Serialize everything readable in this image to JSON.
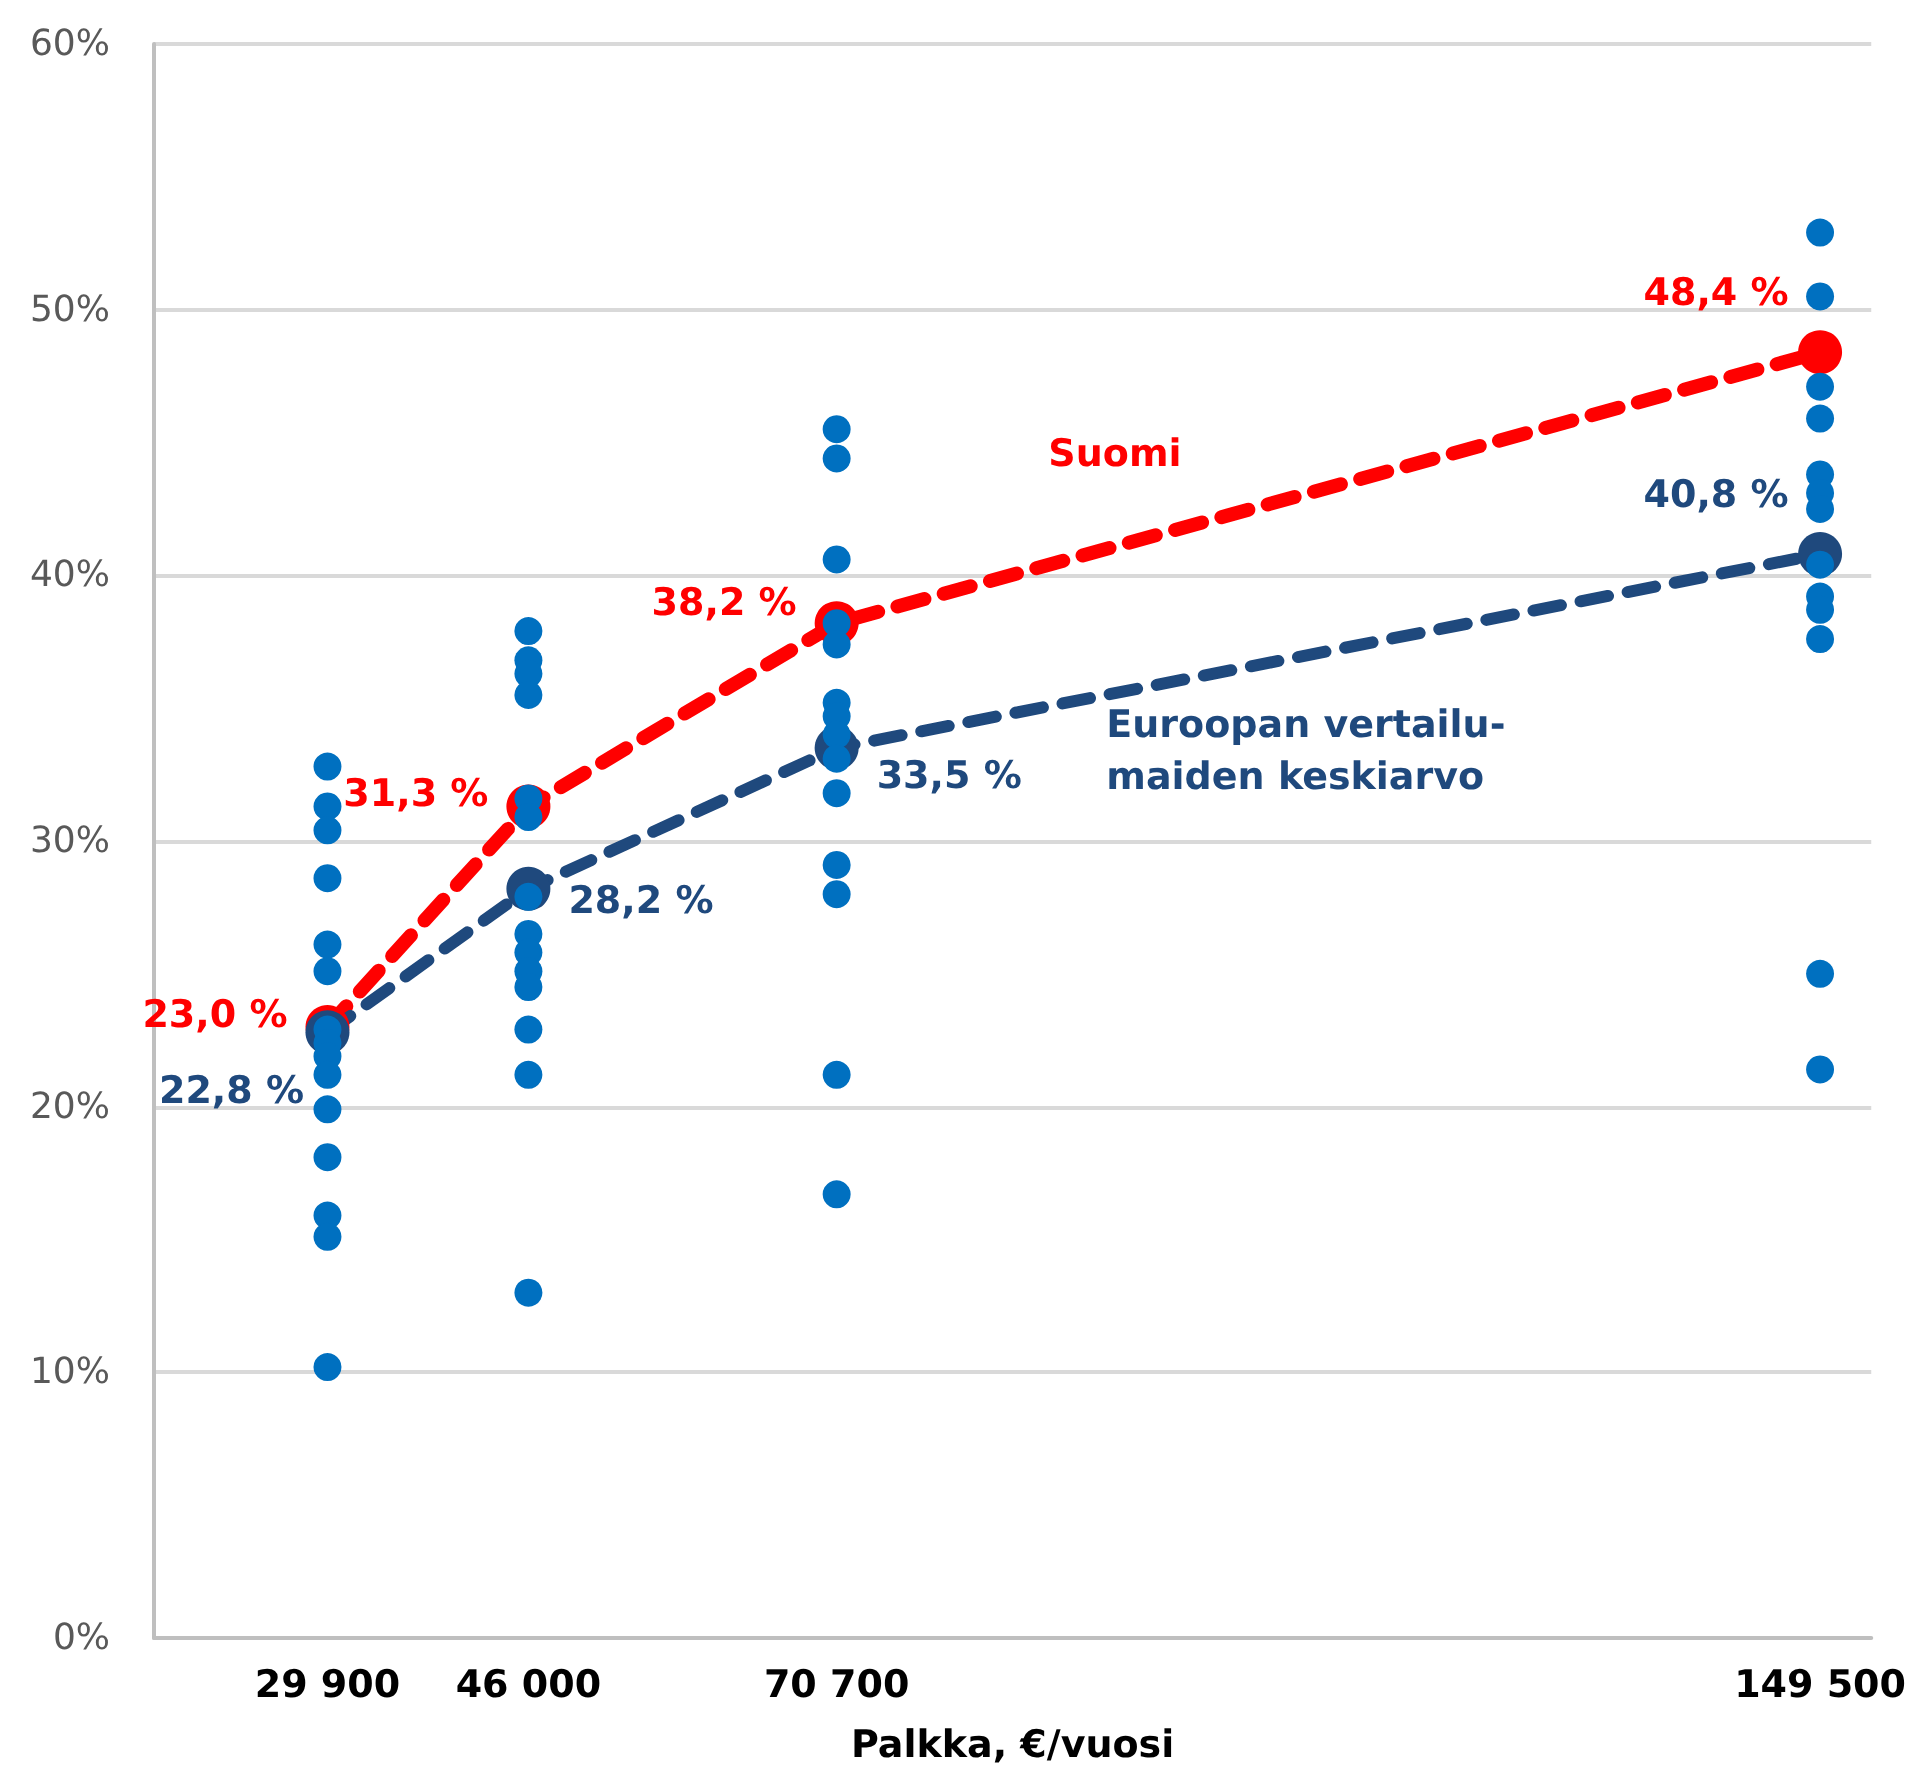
{
  "chart_data": {
    "type": "line",
    "xlabel": "Palkka, €/vuosi",
    "x": [
      29900,
      46000,
      70700,
      149500
    ],
    "xlim": [
      16000,
      153600
    ],
    "xticks": [
      {
        "value": 29900,
        "label": "29 900"
      },
      {
        "value": 46000,
        "label": "46 000"
      },
      {
        "value": 70700,
        "label": "70 700"
      },
      {
        "value": 149500,
        "label": "149 500"
      }
    ],
    "ylim": [
      0,
      60
    ],
    "yticks": [
      {
        "value": 0,
        "label": "0%"
      },
      {
        "value": 10,
        "label": "10%"
      },
      {
        "value": 20,
        "label": "20%"
      },
      {
        "value": 30,
        "label": "30%"
      },
      {
        "value": 40,
        "label": "40%"
      },
      {
        "value": 50,
        "label": "50%"
      },
      {
        "value": 60,
        "label": "60%"
      }
    ],
    "grid": "y",
    "legend": false,
    "line_style": "dashed",
    "marker": "circle",
    "series": [
      {
        "type": "scatter",
        "color": "#0070c0",
        "x": [
          29900,
          29900,
          29900,
          29900,
          29900,
          29900,
          29900,
          29900,
          29900,
          29900,
          29900,
          29900,
          29900,
          29900,
          29900,
          46000,
          46000,
          46000,
          46000,
          46000,
          46000,
          46000,
          46000,
          46000,
          46000,
          46000,
          46000,
          46000,
          46000,
          70700,
          70700,
          70700,
          70700,
          70700,
          70700,
          70700,
          70700,
          70700,
          70700,
          70700,
          70700,
          70700,
          70700,
          149500,
          149500,
          149500,
          149500,
          149500,
          149500,
          149500,
          149500,
          149500,
          149500,
          149500,
          149500,
          149500
        ],
        "values": [
          32.8,
          31.3,
          30.4,
          28.6,
          26.1,
          25.1,
          22.9,
          22.4,
          21.9,
          21.2,
          19.9,
          18.1,
          15.9,
          15.1,
          10.2,
          37.9,
          36.8,
          36.3,
          35.5,
          31.6,
          30.9,
          27.9,
          26.5,
          25.8,
          25.1,
          24.5,
          22.9,
          21.2,
          13.0,
          45.5,
          44.4,
          40.6,
          38.2,
          37.4,
          35.2,
          34.7,
          34.0,
          33.1,
          31.8,
          29.1,
          28.0,
          21.2,
          16.7,
          52.9,
          50.5,
          47.1,
          45.9,
          43.8,
          43.1,
          42.5,
          40.4,
          39.2,
          38.7,
          37.6,
          25.0,
          21.4
        ]
      },
      {
        "name": "Suomi",
        "color": "#ff0000",
        "values": [
          23.0,
          31.3,
          38.2,
          48.4
        ],
        "value_labels": [
          "23,0 %",
          "31,3 %",
          "38,2 %",
          "48,4 %"
        ]
      },
      {
        "name": "Euroopan vertailu-maiden keskiarvo",
        "color": "#1f497d",
        "values": [
          22.8,
          28.2,
          33.5,
          40.8
        ],
        "value_labels": [
          "22,8 %",
          "28,2 %",
          "33,5 %",
          "40,8 %"
        ]
      }
    ]
  }
}
